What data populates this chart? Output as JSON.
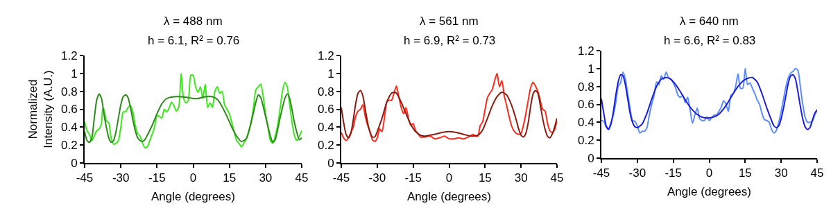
{
  "chart_data": [
    {
      "type": "line",
      "title": "λ = 488 nm",
      "subtitle": "h = 6.1, R² = 0.76",
      "xlabel": "Angle (degrees)",
      "ylabel": "Normalized Intensity (A.U.)",
      "xlim": [
        -45,
        45
      ],
      "xticks": [
        -45,
        -30,
        -15,
        0,
        15,
        30,
        45
      ],
      "ylim": [
        0,
        1.2
      ],
      "yticks": [
        0,
        0.2,
        0.4,
        0.6,
        0.8,
        1,
        1.2
      ],
      "series": [
        {
          "color": "#3ce81c",
          "x": [
            -45,
            -44,
            -43,
            -42,
            -41,
            -40,
            -39,
            -38,
            -37.5,
            -37,
            -36,
            -35,
            -34,
            -33,
            -32,
            -31,
            -30,
            -29,
            -28,
            -27,
            -26,
            -25,
            -24,
            -23,
            -22,
            -21,
            -20,
            -19,
            -18,
            -17,
            -16,
            -15,
            -14,
            -13,
            -12,
            -11,
            -10,
            -9,
            -8,
            -7,
            -6,
            -5,
            -4,
            -3,
            -2,
            -1,
            0,
            1,
            2,
            3,
            4,
            5,
            6,
            7,
            8,
            9,
            10,
            11,
            12,
            13,
            14,
            15,
            16,
            17,
            18,
            19,
            20,
            21,
            22,
            23,
            24,
            25,
            26,
            27,
            28,
            29,
            30,
            31,
            32,
            33,
            34,
            35,
            36,
            37,
            38,
            39,
            40,
            41,
            42,
            43,
            44,
            45
          ],
          "values": [
            0.46,
            0.36,
            0.32,
            0.25,
            0.3,
            0.36,
            0.38,
            0.44,
            0.61,
            0.6,
            0.47,
            0.45,
            0.28,
            0.21,
            0.22,
            0.25,
            0.4,
            0.57,
            0.57,
            0.62,
            0.64,
            0.57,
            0.42,
            0.33,
            0.3,
            0.22,
            0.17,
            0.18,
            0.25,
            0.32,
            0.4,
            0.53,
            0.52,
            0.5,
            0.6,
            0.57,
            0.61,
            0.68,
            0.64,
            0.58,
            0.62,
            1.0,
            0.72,
            0.67,
            0.7,
            0.98,
            0.98,
            0.85,
            0.79,
            0.85,
            0.72,
            0.88,
            0.62,
            0.67,
            0.62,
            0.8,
            0.85,
            0.78,
            0.8,
            0.65,
            0.6,
            0.55,
            0.45,
            0.35,
            0.25,
            0.22,
            0.18,
            0.22,
            0.27,
            0.35,
            0.46,
            0.62,
            0.82,
            0.85,
            0.88,
            0.75,
            0.55,
            0.4,
            0.25,
            0.22,
            0.3,
            0.42,
            0.6,
            0.8,
            0.9,
            0.85,
            0.65,
            0.45,
            0.3,
            0.25,
            0.3,
            0.36
          ]
        },
        {
          "color": "#2c8a1b",
          "x": [
            -45,
            -44,
            -43,
            -42,
            -41,
            -40,
            -39,
            -38,
            -37,
            -36,
            -35,
            -34,
            -33,
            -32,
            -31,
            -30,
            -29,
            -28,
            -27,
            -26,
            -25,
            -24,
            -23,
            -22,
            -21,
            -20,
            -19,
            -17,
            -15,
            -13,
            -11,
            -8,
            -5,
            -2,
            0,
            2,
            5,
            8,
            10,
            12,
            14,
            16,
            18,
            20,
            22,
            24,
            26,
            27,
            28,
            30,
            32,
            33,
            34,
            36,
            38,
            39,
            40,
            42,
            44,
            45
          ],
          "values": [
            0.35,
            0.25,
            0.23,
            0.28,
            0.5,
            0.7,
            0.77,
            0.72,
            0.55,
            0.4,
            0.28,
            0.23,
            0.25,
            0.35,
            0.5,
            0.65,
            0.74,
            0.76,
            0.73,
            0.62,
            0.48,
            0.36,
            0.28,
            0.25,
            0.24,
            0.26,
            0.31,
            0.42,
            0.55,
            0.66,
            0.72,
            0.74,
            0.74,
            0.73,
            0.72,
            0.72,
            0.74,
            0.74,
            0.71,
            0.63,
            0.52,
            0.4,
            0.3,
            0.24,
            0.27,
            0.45,
            0.68,
            0.76,
            0.73,
            0.52,
            0.3,
            0.23,
            0.26,
            0.5,
            0.72,
            0.77,
            0.72,
            0.45,
            0.26,
            0.28
          ]
        }
      ]
    },
    {
      "type": "line",
      "title": "λ = 561 nm",
      "subtitle": "h = 6.9, R² = 0.73",
      "xlabel": "Angle (degrees)",
      "xlim": [
        -45,
        45
      ],
      "xticks": [
        -45,
        -30,
        -15,
        0,
        15,
        30,
        45
      ],
      "ylim": [
        0,
        1.2
      ],
      "yticks": [
        0,
        0.2,
        0.4,
        0.6,
        0.8,
        1,
        1.2
      ],
      "series": [
        {
          "color": "#ff2a1a",
          "x": [
            -45,
            -44,
            -43,
            -42,
            -41,
            -40,
            -39,
            -38,
            -37,
            -36,
            -35,
            -34,
            -33,
            -32,
            -31,
            -30,
            -29,
            -28,
            -27,
            -26,
            -25,
            -24,
            -23,
            -22,
            -21,
            -20,
            -19,
            -18,
            -17,
            -16,
            -15,
            -14,
            -13,
            -12,
            -10,
            -8,
            -6,
            -4,
            -2,
            0,
            2,
            4,
            6,
            8,
            10,
            11,
            12,
            13,
            14,
            15,
            16,
            17,
            18,
            19,
            20,
            21,
            22,
            23,
            24,
            25,
            26,
            27,
            28,
            29,
            30,
            31,
            32,
            33,
            34,
            35,
            36,
            37,
            38,
            39,
            40,
            41,
            42,
            43,
            44,
            45
          ],
          "values": [
            0.34,
            0.28,
            0.25,
            0.28,
            0.34,
            0.4,
            0.52,
            0.58,
            0.6,
            0.65,
            0.52,
            0.42,
            0.35,
            0.26,
            0.24,
            0.28,
            0.38,
            0.35,
            0.5,
            0.68,
            0.7,
            0.7,
            0.78,
            0.86,
            0.74,
            0.62,
            0.55,
            0.62,
            0.5,
            0.42,
            0.44,
            0.36,
            0.33,
            0.29,
            0.29,
            0.3,
            0.27,
            0.28,
            0.3,
            0.27,
            0.27,
            0.28,
            0.27,
            0.29,
            0.32,
            0.3,
            0.3,
            0.42,
            0.46,
            0.6,
            0.73,
            0.78,
            0.82,
            0.92,
            1.0,
            0.85,
            0.92,
            0.75,
            0.64,
            0.52,
            0.42,
            0.36,
            0.33,
            0.32,
            0.33,
            0.42,
            0.55,
            0.7,
            0.84,
            0.9,
            0.86,
            0.8,
            0.7,
            0.6,
            0.58,
            0.45,
            0.36,
            0.34,
            0.37,
            0.48
          ]
        },
        {
          "color": "#8b1a10",
          "x": [
            -45,
            -44,
            -43,
            -42,
            -41,
            -40,
            -39,
            -38,
            -37,
            -36,
            -35,
            -34,
            -33,
            -32,
            -31,
            -30,
            -28,
            -26,
            -24,
            -23,
            -22,
            -20,
            -18,
            -16,
            -14,
            -12,
            -10,
            -6,
            -3,
            0,
            3,
            6,
            9,
            12,
            14,
            16,
            18,
            20,
            22,
            24,
            26,
            28,
            29,
            30,
            31,
            32,
            33,
            34,
            35,
            36,
            37,
            38,
            39,
            40,
            41,
            42,
            43,
            44,
            45
          ],
          "values": [
            0.62,
            0.45,
            0.32,
            0.28,
            0.33,
            0.48,
            0.66,
            0.78,
            0.81,
            0.75,
            0.6,
            0.45,
            0.34,
            0.29,
            0.29,
            0.35,
            0.5,
            0.68,
            0.78,
            0.79,
            0.78,
            0.68,
            0.55,
            0.43,
            0.35,
            0.31,
            0.3,
            0.32,
            0.34,
            0.35,
            0.34,
            0.32,
            0.3,
            0.31,
            0.37,
            0.5,
            0.64,
            0.74,
            0.79,
            0.76,
            0.65,
            0.48,
            0.38,
            0.31,
            0.29,
            0.33,
            0.45,
            0.63,
            0.77,
            0.81,
            0.78,
            0.65,
            0.5,
            0.38,
            0.3,
            0.28,
            0.32,
            0.4,
            0.5
          ]
        }
      ]
    },
    {
      "type": "line",
      "title": "λ = 640 nm",
      "subtitle": "h = 6.6, R² = 0.83",
      "xlabel": "Angle (degrees)",
      "xlim": [
        -45,
        45
      ],
      "xticks": [
        -45,
        -30,
        -15,
        0,
        15,
        30,
        45
      ],
      "ylim": [
        0,
        1.2
      ],
      "yticks": [
        0,
        0.2,
        0.4,
        0.6,
        0.8,
        1,
        1.2
      ],
      "series": [
        {
          "color": "#5b8cff",
          "x": [
            -45,
            -44,
            -43,
            -42,
            -41,
            -40,
            -39,
            -38,
            -37,
            -36,
            -35,
            -34,
            -33,
            -32,
            -31,
            -30,
            -29,
            -28,
            -27,
            -26,
            -25,
            -24,
            -23,
            -22,
            -21,
            -20,
            -19,
            -18,
            -17,
            -16,
            -15,
            -14,
            -13,
            -12,
            -11,
            -10,
            -9,
            -8,
            -7,
            -6,
            -5,
            -4,
            -3,
            -2,
            -1,
            0,
            1,
            2,
            3,
            4,
            5,
            6,
            7,
            8,
            9,
            10,
            11,
            12,
            13,
            14,
            15,
            16,
            17,
            18,
            19,
            20,
            21,
            22,
            23,
            24,
            25,
            26,
            27,
            28,
            29,
            30,
            31,
            32,
            33,
            34,
            35,
            36,
            37,
            38,
            39,
            40,
            41,
            42,
            43,
            44,
            45
          ],
          "values": [
            0.42,
            0.41,
            0.35,
            0.33,
            0.4,
            0.48,
            0.62,
            0.8,
            0.84,
            0.96,
            0.88,
            0.72,
            0.55,
            0.42,
            0.41,
            0.36,
            0.28,
            0.3,
            0.3,
            0.34,
            0.48,
            0.6,
            0.7,
            0.85,
            0.82,
            0.92,
            0.88,
            0.96,
            0.9,
            0.88,
            0.84,
            0.78,
            0.7,
            0.68,
            0.7,
            0.62,
            0.68,
            0.54,
            0.39,
            0.48,
            0.56,
            0.44,
            0.42,
            0.42,
            0.46,
            0.42,
            0.45,
            0.48,
            0.48,
            0.52,
            0.57,
            0.64,
            0.6,
            0.52,
            0.7,
            0.72,
            0.8,
            0.94,
            0.78,
            0.78,
            1.0,
            0.82,
            0.84,
            0.78,
            0.72,
            0.65,
            0.6,
            0.5,
            0.43,
            0.42,
            0.4,
            0.32,
            0.28,
            0.31,
            0.4,
            0.52,
            0.66,
            0.8,
            0.9,
            0.95,
            0.97,
            1.0,
            0.98,
            0.8,
            0.6,
            0.46,
            0.4,
            0.4,
            0.41,
            0.48,
            0.54
          ]
        },
        {
          "color": "#1c1cdc",
          "x": [
            -45,
            -44,
            -43,
            -42,
            -41,
            -40,
            -39,
            -38,
            -37,
            -36,
            -35,
            -34,
            -33,
            -32,
            -31,
            -30,
            -28,
            -26,
            -24,
            -22,
            -20,
            -18,
            -16,
            -14,
            -12,
            -10,
            -8,
            -6,
            -4,
            -2,
            0,
            2,
            4,
            6,
            8,
            10,
            12,
            14,
            16,
            18,
            20,
            22,
            24,
            26,
            27,
            28,
            29,
            30,
            31,
            32,
            33,
            34,
            35,
            36,
            37,
            38,
            39,
            40,
            41,
            42,
            43,
            44,
            45
          ],
          "values": [
            0.66,
            0.5,
            0.36,
            0.32,
            0.38,
            0.52,
            0.7,
            0.85,
            0.93,
            0.92,
            0.82,
            0.66,
            0.5,
            0.4,
            0.35,
            0.34,
            0.38,
            0.5,
            0.66,
            0.8,
            0.88,
            0.9,
            0.88,
            0.82,
            0.74,
            0.65,
            0.57,
            0.51,
            0.47,
            0.45,
            0.45,
            0.46,
            0.49,
            0.55,
            0.63,
            0.72,
            0.8,
            0.86,
            0.89,
            0.9,
            0.85,
            0.72,
            0.56,
            0.42,
            0.36,
            0.34,
            0.36,
            0.44,
            0.56,
            0.7,
            0.84,
            0.92,
            0.93,
            0.88,
            0.74,
            0.58,
            0.44,
            0.35,
            0.32,
            0.34,
            0.42,
            0.5,
            0.54
          ]
        }
      ]
    }
  ]
}
